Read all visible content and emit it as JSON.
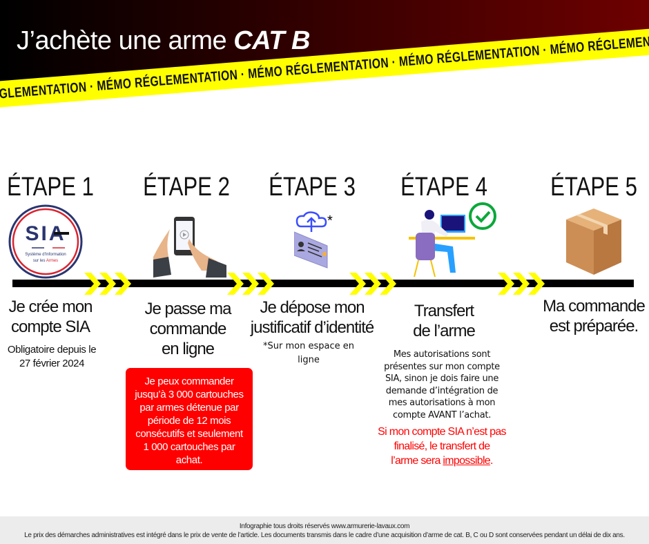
{
  "header": {
    "title_prefix": "J’achète une arme ",
    "title_emphasis": "CAT B",
    "band_text": "MÉMO RÉGLEMENTATION · MÉMO RÉGLEMENTATION · MÉMO RÉGLEMENTATION · MÉMO RÉGLEMENTATION · MÉMO RÉGLEMENTATION · MÉMO RÉGLEMENTATION",
    "colors": {
      "band": "#ffff00",
      "gradient_end": "#6e0000"
    }
  },
  "logo": {
    "text": "SIA",
    "subtitle": "Système d'Information sur les Armes"
  },
  "steps": [
    {
      "label": "ÉTAPE 1",
      "icon": "sia-logo",
      "title": [
        "Je crée mon",
        "compte SIA"
      ],
      "note": [
        "Obligatoire depuis le",
        "27 février 2024"
      ]
    },
    {
      "label": "ÉTAPE 2",
      "icon": "smartphone-hands-icon",
      "title": [
        "Je passe ma",
        "commande",
        "en ligne"
      ],
      "alert": [
        "Je peux commander",
        "jusqu’à 3 000 cartouches",
        "par armes détenue par",
        "période de 12 mois",
        "consécutifs et seulement",
        "1 000 cartouches par",
        "achat."
      ]
    },
    {
      "label": "ÉTAPE 3",
      "icon": "id-card-upload-icon",
      "asterisk": "*",
      "title": [
        "Je dépose mon",
        "justificatif d’identité"
      ],
      "note": [
        "*Sur mon espace en",
        "ligne"
      ]
    },
    {
      "label": "ÉTAPE 4",
      "icon": "person-at-computer-icon",
      "title": [
        "Transfert",
        "de l’arme"
      ],
      "note": [
        "Mes autorisations sont",
        "présentes sur mon compte",
        "SIA, sinon je dois faire une",
        "demande d’intégration de",
        "mes autorisations à mon",
        "compte AVANT l’achat."
      ],
      "warning": [
        "Si mon compte SIA n’est pas",
        "finalisé, le transfert de"
      ],
      "warning_last_prefix": "l’arme sera ",
      "warning_last_underlined": "impossible",
      "warning_last_suffix": "."
    },
    {
      "label": "ÉTAPE 5",
      "icon": "package-box-icon",
      "title": [
        "Ma commande",
        "est  préparée."
      ]
    }
  ],
  "footer": {
    "line1": "Infographie tous droits réservés www.armurerie-lavaux.com",
    "line2": "Le prix des démarches administratives est intégré dans le prix de vente de l’article. Les documents transmis dans le cadre d’une acquisition d’arme de cat. B, C ou D sont conservées pendant un délai de dix ans."
  }
}
